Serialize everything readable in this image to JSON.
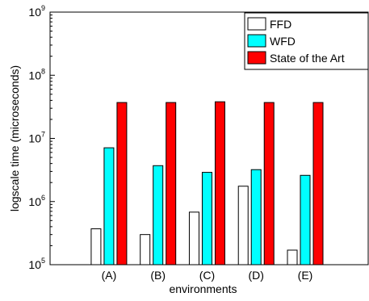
{
  "chart_data": {
    "type": "bar",
    "title": "",
    "xlabel": "environments",
    "ylabel": "logscale time (microseconds)",
    "yscale": "log",
    "ylim": [
      100000,
      1000000000
    ],
    "categories": [
      "(A)",
      "(B)",
      "(C)",
      "(D)",
      "(E)"
    ],
    "y_ticks": [
      {
        "base": "10",
        "exp": "5",
        "value": 100000
      },
      {
        "base": "10",
        "exp": "6",
        "value": 1000000
      },
      {
        "base": "10",
        "exp": "7",
        "value": 10000000
      },
      {
        "base": "10",
        "exp": "8",
        "value": 100000000
      },
      {
        "base": "10",
        "exp": "9",
        "value": 1000000000
      }
    ],
    "series": [
      {
        "name": "FFD",
        "color": "#ffffff",
        "values": [
          370000,
          300000,
          680000,
          1750000,
          170000
        ]
      },
      {
        "name": "WFD",
        "color": "#00ffff",
        "values": [
          7100000,
          3700000,
          2900000,
          3200000,
          2600000
        ]
      },
      {
        "name": "State of the Art",
        "color": "#ff0000",
        "values": [
          37000000,
          37000000,
          38000000,
          37000000,
          37000000
        ]
      }
    ],
    "legend_position": "top-right",
    "grid": false
  }
}
